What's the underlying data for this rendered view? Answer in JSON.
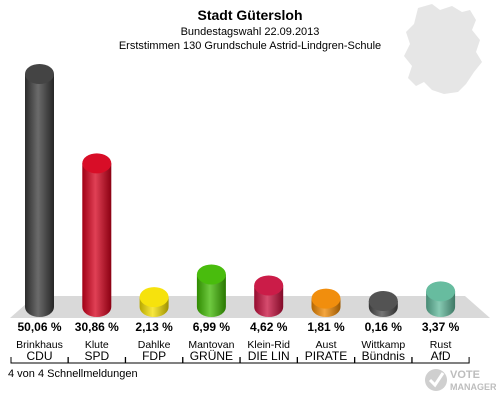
{
  "header": {
    "title": "Stadt Gütersloh",
    "subtitle1": "Bundestagswahl 22.09.2013",
    "subtitle2": "Erststimmen 130 Grundschule Astrid-Lindgren-Schule"
  },
  "chart_data": {
    "type": "bar",
    "categories": [
      "Brinkhaus",
      "Klute",
      "Dahlke",
      "Mantovan",
      "Klein-Rid",
      "Aust",
      "Wittkamp",
      "Rust"
    ],
    "parties": [
      "CDU",
      "SPD",
      "FDP",
      "GRÜNE",
      "DIE LIN",
      "PIRATE",
      "Bündnis",
      "AfD"
    ],
    "values": [
      50.06,
      30.86,
      2.13,
      6.99,
      4.62,
      1.81,
      0.16,
      3.37
    ],
    "value_labels": [
      "50,06 %",
      "30,86 %",
      "2,13 %",
      "6,99 %",
      "4,62 %",
      "1,81 %",
      "0,16 %",
      "3,37 %"
    ],
    "colors": [
      "#3a3a3a",
      "#d6001c",
      "#f5e000",
      "#3fb800",
      "#c8103e",
      "#f08800",
      "#4a4a4a",
      "#5fb89a"
    ],
    "ylim": [
      0,
      50.06
    ]
  },
  "footer": {
    "text": "4 von 4 Schnellmeldungen"
  },
  "logo": {
    "line1": "VOTE",
    "line2": "MANAGER"
  }
}
